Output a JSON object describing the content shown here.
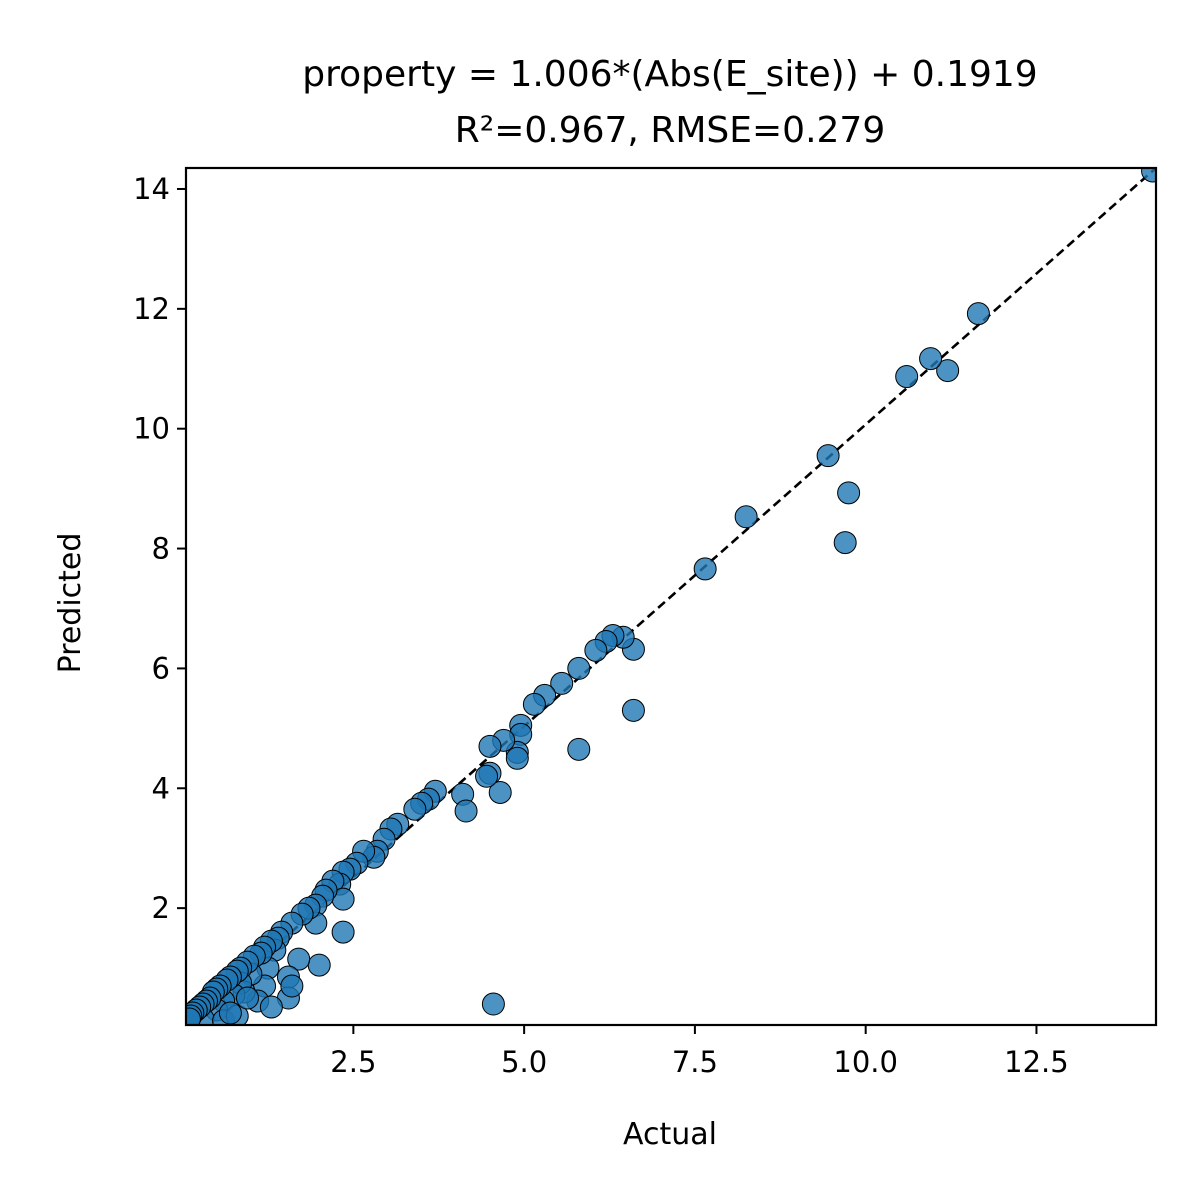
{
  "chart_data": {
    "type": "scatter",
    "title": "property = 1.006*(Abs(E_site)) + 0.1919",
    "subtitle": "R²=0.967, RMSE=0.279",
    "xlabel": "Actual",
    "ylabel": "Predicted",
    "xlim": [
      0.05,
      14.25
    ],
    "ylim": [
      0.05,
      14.35
    ],
    "x_ticks": [
      2.5,
      5.0,
      7.5,
      10.0,
      12.5
    ],
    "x_tick_labels": [
      "2.5",
      "5.0",
      "7.5",
      "10.0",
      "12.5"
    ],
    "y_ticks": [
      2,
      4,
      6,
      8,
      10,
      12,
      14
    ],
    "y_tick_labels": [
      "2",
      "4",
      "6",
      "8",
      "10",
      "12",
      "14"
    ],
    "grid": false,
    "reference_line": {
      "style": "dashed",
      "color": "#000000",
      "from": [
        0.05,
        0.05
      ],
      "to": [
        14.25,
        14.35
      ]
    },
    "marker_color": "#1f77b4",
    "marker_edge_color": "#000000",
    "points": [
      [
        14.2,
        14.3
      ],
      [
        11.65,
        11.92
      ],
      [
        11.2,
        10.97
      ],
      [
        10.95,
        11.17
      ],
      [
        10.6,
        10.87
      ],
      [
        9.45,
        9.55
      ],
      [
        9.75,
        8.93
      ],
      [
        9.7,
        8.1
      ],
      [
        8.25,
        8.53
      ],
      [
        7.65,
        7.66
      ],
      [
        6.6,
        6.32
      ],
      [
        6.6,
        5.3
      ],
      [
        6.45,
        6.52
      ],
      [
        6.3,
        6.55
      ],
      [
        6.2,
        6.45
      ],
      [
        6.05,
        6.3
      ],
      [
        5.8,
        6.0
      ],
      [
        5.55,
        5.75
      ],
      [
        5.3,
        5.55
      ],
      [
        5.15,
        5.4
      ],
      [
        4.95,
        5.05
      ],
      [
        4.95,
        4.9
      ],
      [
        4.9,
        4.6
      ],
      [
        4.9,
        4.5
      ],
      [
        4.7,
        4.8
      ],
      [
        4.65,
        3.93
      ],
      [
        4.5,
        4.7
      ],
      [
        4.5,
        4.25
      ],
      [
        4.45,
        4.2
      ],
      [
        4.55,
        0.4
      ],
      [
        5.8,
        4.65
      ],
      [
        4.1,
        3.9
      ],
      [
        4.15,
        3.62
      ],
      [
        3.7,
        3.95
      ],
      [
        3.6,
        3.82
      ],
      [
        3.5,
        3.75
      ],
      [
        3.4,
        3.65
      ],
      [
        3.15,
        3.4
      ],
      [
        3.05,
        3.32
      ],
      [
        2.95,
        3.15
      ],
      [
        2.85,
        2.95
      ],
      [
        2.8,
        2.85
      ],
      [
        2.65,
        2.95
      ],
      [
        2.55,
        2.75
      ],
      [
        2.45,
        2.65
      ],
      [
        2.35,
        2.6
      ],
      [
        2.3,
        2.4
      ],
      [
        2.2,
        2.45
      ],
      [
        2.35,
        2.15
      ],
      [
        2.35,
        1.6
      ],
      [
        2.1,
        2.3
      ],
      [
        2.05,
        2.2
      ],
      [
        1.95,
        2.05
      ],
      [
        1.95,
        1.75
      ],
      [
        2.0,
        1.05
      ],
      [
        1.85,
        2.0
      ],
      [
        1.75,
        1.9
      ],
      [
        1.7,
        1.15
      ],
      [
        1.6,
        1.75
      ],
      [
        1.55,
        0.85
      ],
      [
        1.55,
        0.5
      ],
      [
        1.45,
        1.6
      ],
      [
        1.4,
        1.5
      ],
      [
        1.35,
        1.3
      ],
      [
        1.3,
        1.45
      ],
      [
        1.25,
        1.0
      ],
      [
        1.2,
        1.35
      ],
      [
        1.2,
        0.7
      ],
      [
        1.15,
        1.25
      ],
      [
        1.1,
        0.45
      ],
      [
        1.05,
        1.2
      ],
      [
        1.0,
        0.9
      ],
      [
        0.95,
        1.1
      ],
      [
        0.9,
        0.6
      ],
      [
        0.85,
        1.0
      ],
      [
        0.85,
        0.75
      ],
      [
        0.8,
        0.95
      ],
      [
        0.75,
        0.55
      ],
      [
        0.7,
        0.85
      ],
      [
        0.65,
        0.8
      ],
      [
        0.6,
        0.45
      ],
      [
        0.55,
        0.7
      ],
      [
        0.5,
        0.65
      ],
      [
        0.5,
        0.3
      ],
      [
        0.45,
        0.6
      ],
      [
        0.4,
        0.5
      ],
      [
        0.35,
        0.45
      ],
      [
        0.3,
        0.4
      ],
      [
        0.3,
        0.15
      ],
      [
        0.25,
        0.35
      ],
      [
        0.2,
        0.3
      ],
      [
        0.15,
        0.25
      ],
      [
        0.12,
        0.2
      ],
      [
        0.1,
        0.15
      ],
      [
        0.6,
        0.12
      ],
      [
        0.8,
        0.2
      ],
      [
        1.3,
        0.35
      ],
      [
        1.6,
        0.7
      ],
      [
        0.95,
        0.5
      ],
      [
        0.7,
        0.25
      ]
    ]
  }
}
